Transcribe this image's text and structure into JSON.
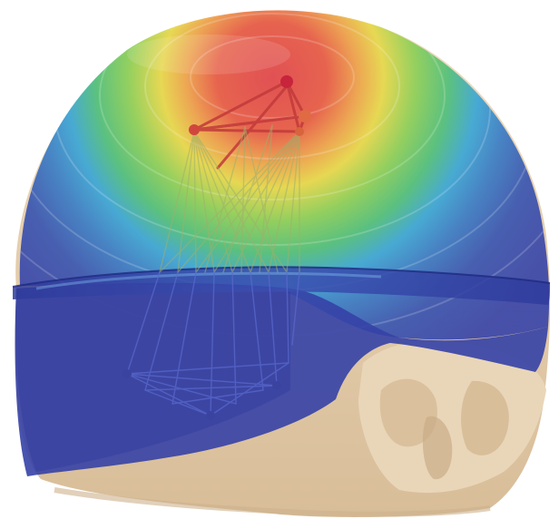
{
  "scene": {
    "subject": "head-model",
    "colors": {
      "background": "#ffffff",
      "skin": "#e8d2b2",
      "skin_shadow": "#c9ad88",
      "field_low": "#3a46a8",
      "field_mid_low": "#3aa6d6",
      "field_mid": "#62c46a",
      "field_mid_high": "#e6d84a",
      "field_high": "#e0454b",
      "strut": "#c23a3a"
    }
  }
}
